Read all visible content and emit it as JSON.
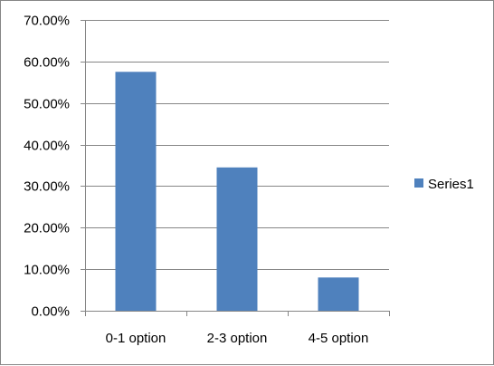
{
  "chart_data": {
    "type": "bar",
    "categories": [
      "0-1 option",
      "2-3 option",
      "4-5 option"
    ],
    "series": [
      {
        "name": "Series1",
        "values": [
          0.575,
          0.345,
          0.08
        ],
        "color": "#4F81BD"
      }
    ],
    "ylim": [
      0,
      0.7
    ],
    "yticks": [
      0,
      0.1,
      0.2,
      0.3,
      0.4,
      0.5,
      0.6,
      0.7
    ],
    "ytick_labels": [
      "0.00%",
      "10.00%",
      "20.00%",
      "30.00%",
      "40.00%",
      "50.00%",
      "60.00%",
      "70.00%"
    ],
    "grid": true,
    "legend_position": "right",
    "title": "",
    "xlabel": "",
    "ylabel": ""
  }
}
